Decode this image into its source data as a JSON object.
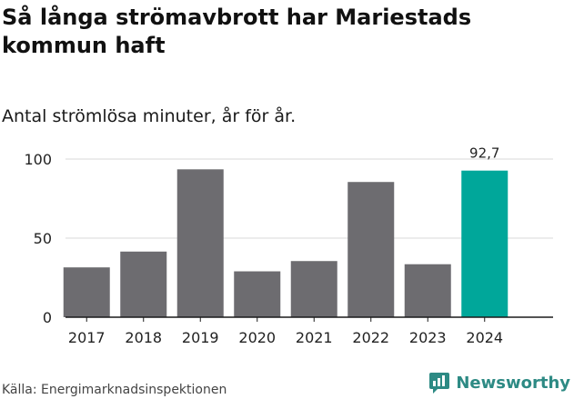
{
  "header": {
    "title": "Så långa strömavbrott har Mariestads kommun haft",
    "subtitle": "Antal strömlösa minuter, år för år."
  },
  "footer": {
    "source": "Källa: Energimarknadsinspektionen",
    "brand": "Newsworthy"
  },
  "colors": {
    "bar_default": "#6d6c70",
    "bar_highlight": "#00a79a",
    "grid": "#d9d9d9",
    "axis": "#1a1a1a",
    "brand": "#2d8a84"
  },
  "chart_data": {
    "type": "bar",
    "title": "Så långa strömavbrott har Mariestads kommun haft",
    "subtitle": "Antal strömlösa minuter, år för år.",
    "categories": [
      "2017",
      "2018",
      "2019",
      "2020",
      "2021",
      "2022",
      "2023",
      "2024"
    ],
    "values": [
      31.5,
      41.5,
      93.5,
      29,
      35.5,
      85.5,
      33.5,
      92.7
    ],
    "highlight_index": 7,
    "data_labels": [
      {
        "index": 7,
        "text": "92,7"
      }
    ],
    "yticks": [
      0,
      50,
      100
    ],
    "ylim": [
      0,
      100
    ],
    "xlabel": "",
    "ylabel": "",
    "grid": true,
    "legend": "none"
  }
}
